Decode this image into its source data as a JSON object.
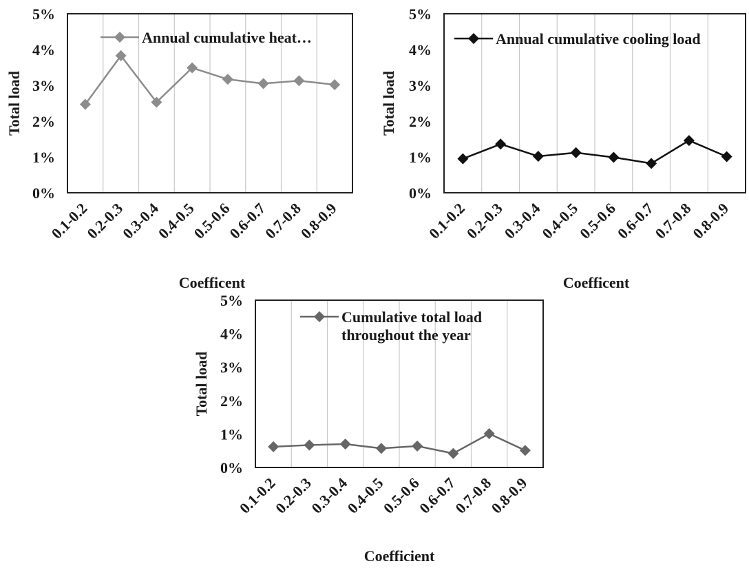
{
  "chart_data": [
    {
      "type": "line",
      "categories": [
        "0.1-0.2",
        "0.2-0.3",
        "0.3-0.4",
        "0.4-0.5",
        "0.5-0.6",
        "0.6-0.7",
        "0.7-0.8",
        "0.8-0.9"
      ],
      "series": [
        {
          "name": "Annual cumulative heat…",
          "values": [
            2.47,
            3.83,
            2.53,
            3.49,
            3.17,
            3.05,
            3.13,
            3.02
          ],
          "color": "#8c8c8c"
        }
      ],
      "yticks": [
        "0%",
        "1%",
        "2%",
        "3%",
        "4%",
        "5%"
      ],
      "ylim": [
        0,
        5
      ],
      "ylabel": "Total load",
      "xlabel": "Coefficent",
      "grid": "vertical",
      "legend": "top"
    },
    {
      "type": "line",
      "categories": [
        "0.1-0.2",
        "0.2-0.3",
        "0.3-0.4",
        "0.4-0.5",
        "0.5-0.6",
        "0.6-0.7",
        "0.7-0.8",
        "0.8-0.9"
      ],
      "series": [
        {
          "name": "Annual cumulative cooling load",
          "values": [
            0.95,
            1.36,
            1.02,
            1.12,
            0.99,
            0.82,
            1.46,
            1.01
          ],
          "color": "#111111"
        }
      ],
      "yticks": [
        "0%",
        "1%",
        "2%",
        "3%",
        "4%",
        "5%"
      ],
      "ylim": [
        0,
        5
      ],
      "ylabel": "Total load",
      "xlabel": "Coefficent",
      "grid": "vertical",
      "legend": "top"
    },
    {
      "type": "line",
      "categories": [
        "0.1-0.2",
        "0.2-0.3",
        "0.3-0.4",
        "0.4-0.5",
        "0.5-0.6",
        "0.6-0.7",
        "0.7-0.8",
        "0.8-0.9"
      ],
      "series": [
        {
          "name": "Cumulative total load throughout the year",
          "name_lines": [
            "Cumulative total load",
            "throughout the year"
          ],
          "values": [
            0.62,
            0.67,
            0.7,
            0.57,
            0.64,
            0.42,
            1.01,
            0.51
          ],
          "color": "#666666"
        }
      ],
      "yticks": [
        "0%",
        "1%",
        "2%",
        "3%",
        "4%",
        "5%"
      ],
      "ylim": [
        0,
        5
      ],
      "ylabel": "Total load",
      "xlabel": "Coefficient",
      "grid": "vertical",
      "legend": "top"
    }
  ]
}
